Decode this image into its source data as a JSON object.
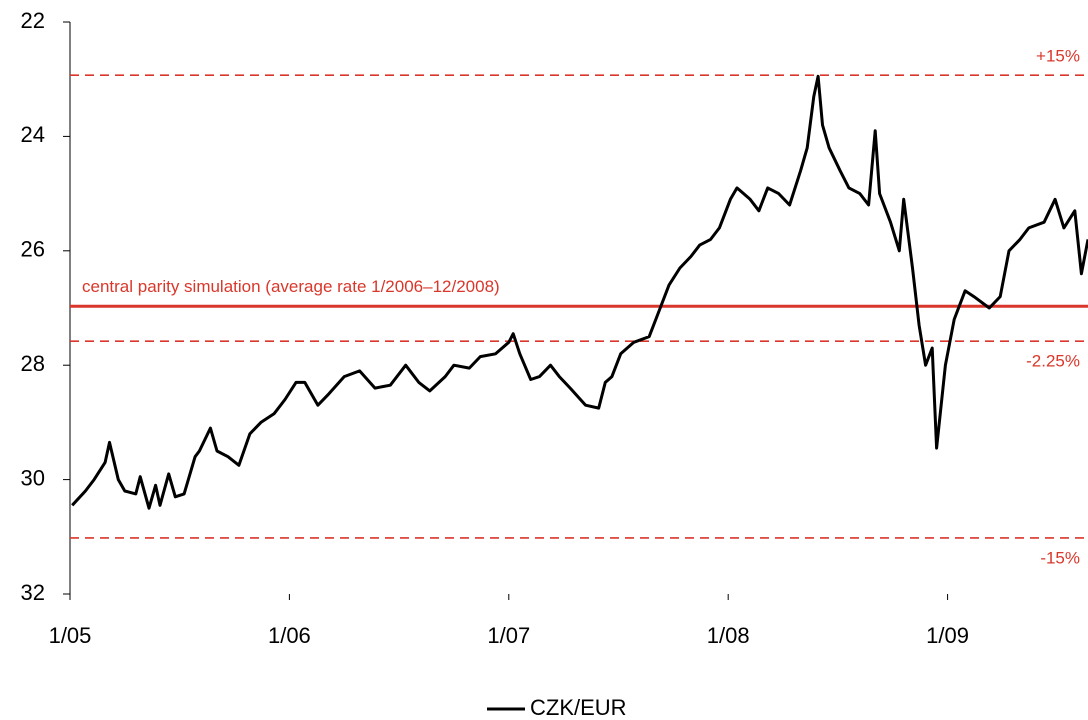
{
  "chart_data": {
    "type": "line",
    "ylim": [
      22,
      32
    ],
    "y_inverted": true,
    "yticks": [
      22,
      24,
      26,
      28,
      30,
      32
    ],
    "xlim": [
      2005,
      2009.64
    ],
    "xticks": [
      {
        "value": 2005,
        "label": "1/05"
      },
      {
        "value": 2006,
        "label": "1/06"
      },
      {
        "value": 2007,
        "label": "1/07"
      },
      {
        "value": 2008,
        "label": "1/08"
      },
      {
        "value": 2009,
        "label": "1/09"
      }
    ],
    "grid": false,
    "legend": "bottom",
    "x": [
      2005.01,
      2005.07,
      2005.11,
      2005.16,
      2005.18,
      2005.22,
      2005.25,
      2005.3,
      2005.32,
      2005.36,
      2005.39,
      2005.41,
      2005.45,
      2005.48,
      2005.52,
      2005.57,
      2005.59,
      2005.64,
      2005.67,
      2005.72,
      2005.77,
      2005.82,
      2005.87,
      2005.93,
      2005.98,
      2006.03,
      2006.07,
      2006.13,
      2006.18,
      2006.25,
      2006.32,
      2006.39,
      2006.46,
      2006.53,
      2006.59,
      2006.64,
      2006.71,
      2006.75,
      2006.82,
      2006.87,
      2006.94,
      2007.0,
      2007.02,
      2007.05,
      2007.1,
      2007.14,
      2007.19,
      2007.23,
      2007.28,
      2007.35,
      2007.41,
      2007.44,
      2007.47,
      2007.51,
      2007.57,
      2007.64,
      2007.69,
      2007.73,
      2007.78,
      2007.83,
      2007.87,
      2007.92,
      2007.96,
      2008.01,
      2008.04,
      2008.1,
      2008.14,
      2008.18,
      2008.23,
      2008.28,
      2008.33,
      2008.36,
      2008.39,
      2008.41,
      2008.43,
      2008.46,
      2008.51,
      2008.55,
      2008.6,
      2008.64,
      2008.67,
      2008.69,
      2008.74,
      2008.78,
      2008.8,
      2008.84,
      2008.87,
      2008.9,
      2008.93,
      2008.95,
      2008.99,
      2009.03,
      2009.08,
      2009.12,
      2009.19,
      2009.24,
      2009.28,
      2009.33,
      2009.37,
      2009.44,
      2009.49,
      2009.53,
      2009.58,
      2009.61,
      2009.64
    ],
    "series": [
      {
        "name": "CZK/EUR",
        "color": "#000000",
        "values": [
          30.45,
          30.2,
          30.0,
          29.7,
          29.35,
          30.0,
          30.2,
          30.25,
          29.95,
          30.5,
          30.1,
          30.45,
          29.9,
          30.3,
          30.25,
          29.6,
          29.5,
          29.1,
          29.5,
          29.6,
          29.75,
          29.2,
          29.0,
          28.85,
          28.6,
          28.3,
          28.3,
          28.7,
          28.5,
          28.2,
          28.1,
          28.4,
          28.35,
          28.0,
          28.3,
          28.45,
          28.2,
          28.0,
          28.05,
          27.85,
          27.8,
          27.6,
          27.45,
          27.8,
          28.25,
          28.2,
          28.0,
          28.2,
          28.4,
          28.7,
          28.75,
          28.3,
          28.2,
          27.8,
          27.6,
          27.5,
          27.0,
          26.6,
          26.3,
          26.1,
          25.9,
          25.8,
          25.6,
          25.1,
          24.9,
          25.1,
          25.3,
          24.9,
          25.0,
          25.2,
          24.6,
          24.2,
          23.3,
          22.95,
          23.8,
          24.2,
          24.6,
          24.9,
          25.0,
          25.2,
          23.9,
          25.0,
          25.5,
          26.0,
          25.1,
          26.3,
          27.3,
          28.0,
          27.7,
          29.45,
          28.0,
          27.2,
          26.7,
          26.8,
          27.0,
          26.8,
          26.0,
          25.8,
          25.6,
          25.5,
          25.1,
          25.6,
          25.3,
          26.4,
          25.8
        ]
      }
    ],
    "reference_lines": [
      {
        "label": "+15%",
        "value": 22.93,
        "color": "#d9372b",
        "style": "dashed"
      },
      {
        "label": "central parity simulation (average rate 1/2006–12/2008)",
        "value": 26.97,
        "color": "#d9372b",
        "style": "solid"
      },
      {
        "label": "-2.25%",
        "value": 27.58,
        "color": "#d9372b",
        "style": "dashed"
      },
      {
        "label": "-15%",
        "value": 31.02,
        "color": "#d9372b",
        "style": "dashed"
      }
    ]
  }
}
